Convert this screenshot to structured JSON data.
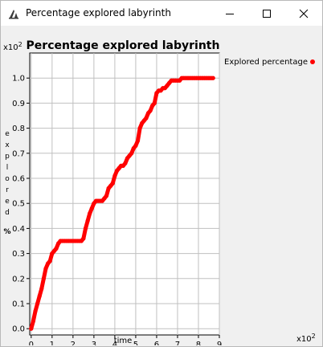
{
  "window": {
    "title": "Percentage explored labyrinth"
  },
  "chart_data": {
    "type": "line",
    "title": "Percentage explored labyrinth",
    "xlabel": "time",
    "ylabel": "explored %",
    "x_scale_label": "x10",
    "x_scale_exp": "2",
    "y_scale_label": "x10",
    "y_scale_exp": "2",
    "xlim": [
      -0.07,
      9.0
    ],
    "ylim": [
      -0.025,
      1.1
    ],
    "xticks": [
      "0",
      "1",
      "2",
      "3",
      "4",
      "5",
      "6",
      "7",
      "8",
      "9"
    ],
    "yticks": [
      "0.0",
      "0.1",
      "0.2",
      "0.3",
      "0.4",
      "0.5",
      "0.6",
      "0.7",
      "0.8",
      "0.9",
      "1.0"
    ],
    "grid": true,
    "legend_position": "right",
    "series": [
      {
        "name": "Explored percentage",
        "color": "#ff0000",
        "x": [
          0.0,
          0.1,
          0.2,
          0.3,
          0.4,
          0.5,
          0.6,
          0.7,
          0.8,
          0.9,
          1.0,
          1.1,
          1.2,
          1.3,
          1.4,
          1.5,
          1.6,
          1.7,
          1.8,
          1.9,
          2.0,
          2.1,
          2.2,
          2.3,
          2.4,
          2.5,
          2.6,
          2.7,
          2.8,
          2.9,
          3.0,
          3.1,
          3.2,
          3.3,
          3.4,
          3.5,
          3.6,
          3.7,
          3.8,
          3.9,
          4.0,
          4.1,
          4.2,
          4.3,
          4.4,
          4.5,
          4.6,
          4.7,
          4.8,
          4.9,
          5.0,
          5.1,
          5.2,
          5.3,
          5.4,
          5.5,
          5.6,
          5.7,
          5.8,
          5.9,
          6.0,
          6.1,
          6.2,
          6.3,
          6.4,
          6.5,
          6.6,
          6.7,
          6.8,
          6.9,
          7.0,
          7.1,
          7.2,
          7.3,
          7.4,
          7.5,
          7.6,
          7.7,
          7.8,
          7.9,
          8.0,
          8.1,
          8.2,
          8.3,
          8.4,
          8.5,
          8.6,
          8.7
        ],
        "y": [
          0.0,
          0.03,
          0.07,
          0.1,
          0.13,
          0.16,
          0.2,
          0.24,
          0.26,
          0.27,
          0.3,
          0.31,
          0.32,
          0.34,
          0.35,
          0.35,
          0.35,
          0.35,
          0.35,
          0.35,
          0.35,
          0.35,
          0.35,
          0.35,
          0.35,
          0.36,
          0.4,
          0.43,
          0.46,
          0.48,
          0.5,
          0.51,
          0.51,
          0.51,
          0.51,
          0.52,
          0.53,
          0.56,
          0.57,
          0.58,
          0.61,
          0.63,
          0.64,
          0.65,
          0.65,
          0.66,
          0.68,
          0.69,
          0.7,
          0.72,
          0.73,
          0.75,
          0.8,
          0.82,
          0.83,
          0.84,
          0.86,
          0.87,
          0.89,
          0.9,
          0.94,
          0.95,
          0.95,
          0.96,
          0.96,
          0.97,
          0.98,
          0.99,
          0.99,
          0.99,
          0.99,
          0.99,
          1.0,
          1.0,
          1.0,
          1.0,
          1.0,
          1.0,
          1.0,
          1.0,
          1.0,
          1.0,
          1.0,
          1.0,
          1.0,
          1.0,
          1.0,
          1.0
        ]
      }
    ]
  }
}
